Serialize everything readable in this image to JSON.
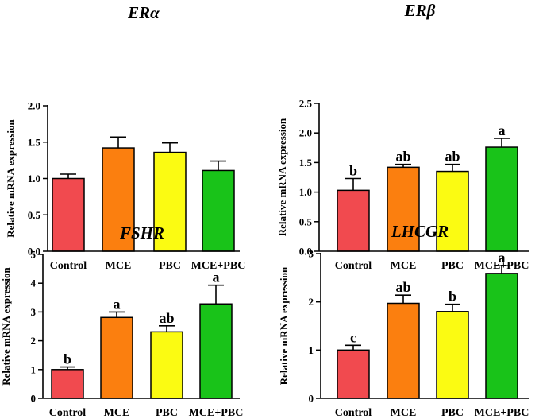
{
  "colors": {
    "Control": "#f14a4f",
    "MCE": "#fb7f0f",
    "PBC": "#fbfb12",
    "MCE+PBC": "#19c319"
  },
  "chart_data": [
    {
      "type": "bar",
      "title": "ERα",
      "ylabel": "Relative mRNA expression",
      "categories": [
        "Control",
        "MCE",
        "PBC",
        "MCE+PBC"
      ],
      "values": [
        1.0,
        1.42,
        1.36,
        1.11
      ],
      "errors": [
        0.06,
        0.15,
        0.13,
        0.13
      ],
      "significance": [
        "",
        "",
        "",
        ""
      ],
      "ylim": [
        0,
        2.0
      ],
      "yticks": [
        "0.0",
        "0.5",
        "1.0",
        "1.5",
        "2.0"
      ]
    },
    {
      "type": "bar",
      "title": "ERβ",
      "ylabel": "Relative mRNA expression",
      "categories": [
        "Control",
        "MCE",
        "PBC",
        "MCE+PBC"
      ],
      "values": [
        1.03,
        1.42,
        1.35,
        1.76
      ],
      "errors": [
        0.2,
        0.05,
        0.12,
        0.15
      ],
      "significance": [
        "b",
        "ab",
        "ab",
        "a"
      ],
      "ylim": [
        0,
        2.5
      ],
      "yticks": [
        "0.0",
        "0.5",
        "1.0",
        "1.5",
        "2.0",
        "2.5"
      ]
    },
    {
      "type": "bar",
      "title": "FSHR",
      "ylabel": "Relative mRNA expression",
      "categories": [
        "Control",
        "MCE",
        "PBC",
        "MCE+PBC"
      ],
      "values": [
        1.0,
        2.81,
        2.31,
        3.28
      ],
      "errors": [
        0.09,
        0.19,
        0.21,
        0.65
      ],
      "significance": [
        "b",
        "a",
        "ab",
        "a"
      ],
      "ylim": [
        0,
        5
      ],
      "yticks": [
        "0",
        "1",
        "2",
        "3",
        "4",
        "5"
      ]
    },
    {
      "type": "bar",
      "title": "LHCGR",
      "ylabel": "Relative mRNA expression",
      "categories": [
        "Control",
        "MCE",
        "PBC",
        "MCE+PBC"
      ],
      "values": [
        1.0,
        1.97,
        1.8,
        2.59
      ],
      "errors": [
        0.1,
        0.17,
        0.15,
        0.16
      ],
      "significance": [
        "c",
        "ab",
        "b",
        "a"
      ],
      "ylim": [
        0,
        3
      ],
      "yticks": [
        "0",
        "1",
        "2",
        "3"
      ]
    }
  ]
}
